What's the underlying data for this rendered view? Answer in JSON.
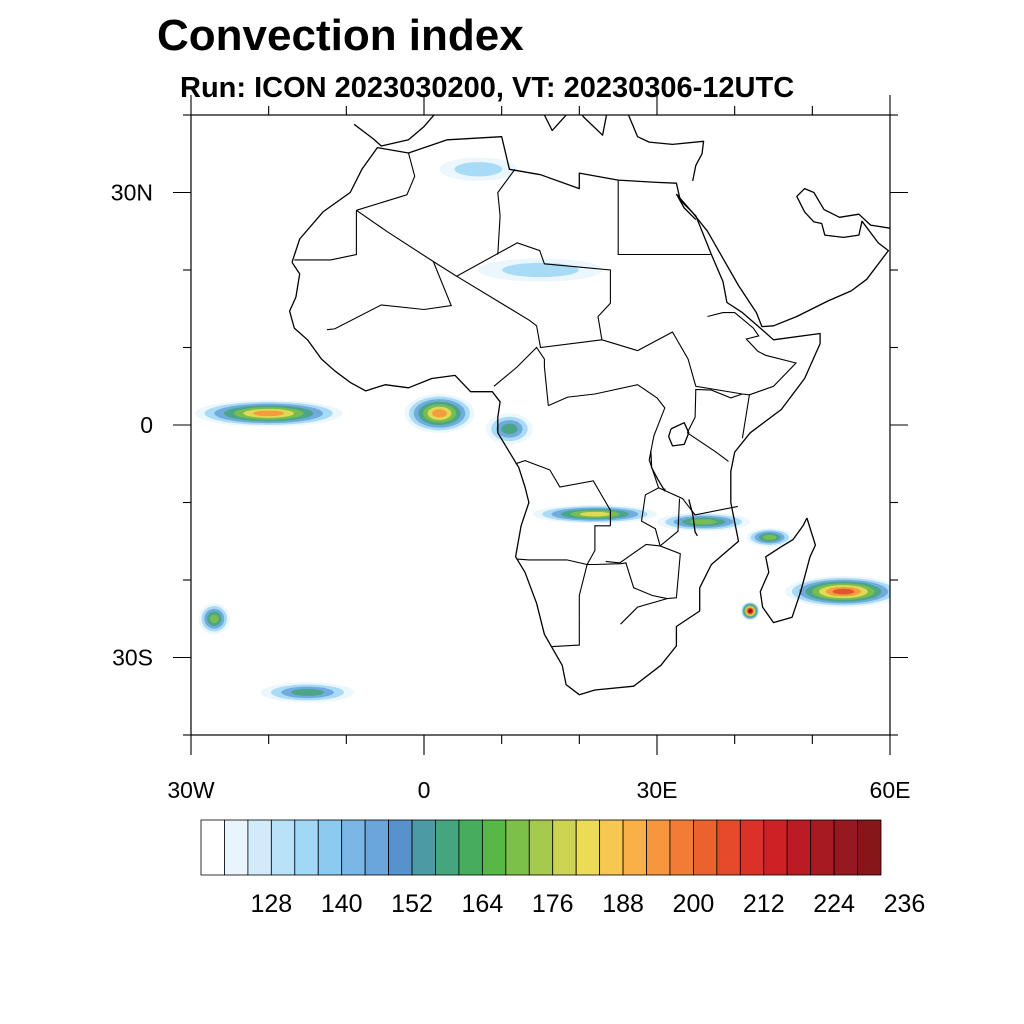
{
  "title": "Convection index",
  "subtitle": "Run: ICON 2023030200,  VT: 20230306-12UTC",
  "map": {
    "projection": "cylindrical-equidistant",
    "lon_range": [
      -30,
      60
    ],
    "lat_range": [
      -40,
      40
    ],
    "lat_tick_labels": [
      {
        "lat": 30,
        "label": "30N"
      },
      {
        "lat": 0,
        "label": "0"
      },
      {
        "lat": -30,
        "label": "30S"
      }
    ],
    "lon_tick_labels": [
      {
        "lon": -30,
        "label": "30W"
      },
      {
        "lon": 0,
        "label": "0"
      },
      {
        "lon": 30,
        "label": "30E"
      },
      {
        "lon": 60,
        "label": "60E"
      }
    ],
    "minor_lat_ticks": [
      40,
      20,
      10,
      -10,
      -20,
      -40
    ],
    "minor_lon_ticks": [
      -20,
      -10,
      10,
      20,
      40,
      50
    ],
    "convection_features": [
      {
        "id": "atlantic-itcz",
        "lon": -20,
        "lat": 1.5,
        "rx_deg": 9.5,
        "ry_deg": 1.7,
        "peak": 200
      },
      {
        "id": "gulf-of-guinea",
        "lon": 2,
        "lat": 1.5,
        "rx_deg": 4.5,
        "ry_deg": 2.5,
        "peak": 206
      },
      {
        "id": "congo-coast",
        "lon": 11,
        "lat": -0.5,
        "rx_deg": 3,
        "ry_deg": 2,
        "peak": 160
      },
      {
        "id": "southern-belt",
        "lon": 22,
        "lat": -11.5,
        "rx_deg": 8,
        "ry_deg": 1.2,
        "peak": 188
      },
      {
        "id": "east-africa-belt",
        "lon": 36,
        "lat": -12.5,
        "rx_deg": 6,
        "ry_deg": 1.2,
        "peak": 180
      },
      {
        "id": "madagascar-cyclone",
        "lon": 42,
        "lat": -24,
        "rx_deg": 1.2,
        "ry_deg": 1.2,
        "peak": 236
      },
      {
        "id": "indian-ocean-band",
        "lon": 54,
        "lat": -21.5,
        "rx_deg": 7.5,
        "ry_deg": 2,
        "peak": 212
      },
      {
        "id": "mozambique-channel",
        "lon": 44.5,
        "lat": -14.5,
        "rx_deg": 3,
        "ry_deg": 1.2,
        "peak": 176
      },
      {
        "id": "sahara-band",
        "lon": 15,
        "lat": 20,
        "rx_deg": 8,
        "ry_deg": 1.5,
        "peak": 140
      },
      {
        "id": "algeria-patch",
        "lon": 7,
        "lat": 33,
        "rx_deg": 5,
        "ry_deg": 1.5,
        "peak": 136
      },
      {
        "id": "south-atlantic",
        "lon": -15,
        "lat": -34.5,
        "rx_deg": 6,
        "ry_deg": 1.3,
        "peak": 160
      },
      {
        "id": "sw-atlantic",
        "lon": -27,
        "lat": -25,
        "rx_deg": 2,
        "ry_deg": 2,
        "peak": 176
      }
    ]
  },
  "colorbar": {
    "colors": [
      "#ffffff",
      "#e9f5fd",
      "#d1ebfa",
      "#b9e1f8",
      "#a1d8f5",
      "#8ccaf0",
      "#7ab7e6",
      "#6aa5dc",
      "#5892cd",
      "#4b9aa4",
      "#46a47f",
      "#47ad5d",
      "#57b848",
      "#7cc04a",
      "#a6ca4e",
      "#ccd452",
      "#ecdc55",
      "#f7c84f",
      "#f8b047",
      "#f6963d",
      "#f27c35",
      "#ec622f",
      "#e54b2b",
      "#db3128",
      "#cc2226",
      "#bb1c24",
      "#a81a22",
      "#961820",
      "#861618"
    ],
    "labels": [
      "128",
      "140",
      "152",
      "164",
      "176",
      "188",
      "200",
      "212",
      "224",
      "236"
    ]
  }
}
